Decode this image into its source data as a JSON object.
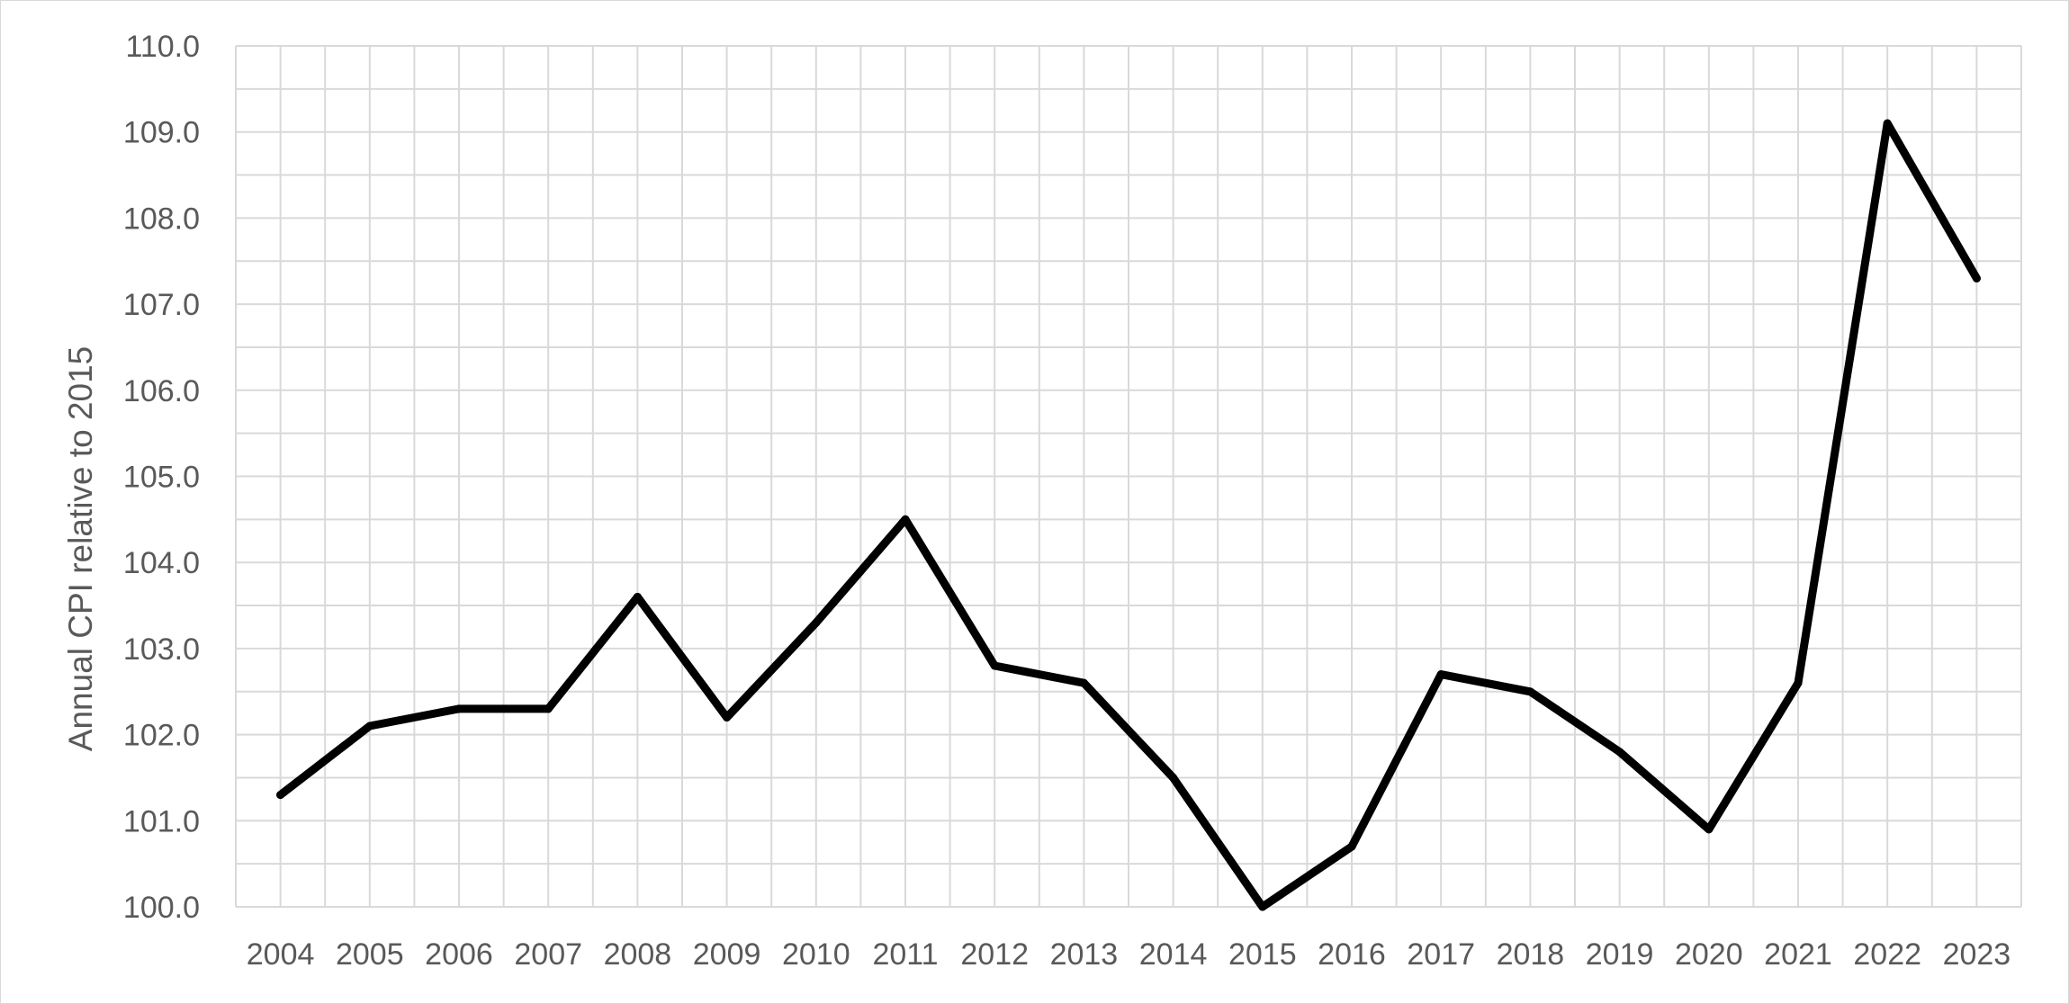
{
  "chart_data": {
    "type": "line",
    "title": "",
    "xlabel": "",
    "ylabel": "Annual CPI relative to 2015",
    "x": [
      "2004",
      "2005",
      "2006",
      "2007",
      "2008",
      "2009",
      "2010",
      "2011",
      "2012",
      "2013",
      "2014",
      "2015",
      "2016",
      "2017",
      "2018",
      "2019",
      "2020",
      "2021",
      "2022",
      "2023"
    ],
    "series": [
      {
        "values": [
          101.3,
          102.1,
          102.3,
          102.3,
          103.6,
          102.2,
          103.3,
          104.5,
          102.8,
          102.6,
          101.5,
          100.0,
          100.7,
          102.7,
          102.5,
          101.8,
          100.9,
          102.6,
          109.1,
          107.3
        ],
        "color": "#000000"
      }
    ],
    "ylim": [
      100.0,
      110.0
    ],
    "yticks": [
      "100.0",
      "101.0",
      "102.0",
      "103.0",
      "104.0",
      "105.0",
      "106.0",
      "107.0",
      "108.0",
      "109.0",
      "110.0"
    ],
    "grid": true,
    "legend": "none",
    "colors": {
      "grid": "#d9d9d9",
      "text": "#595959",
      "line": "#000000"
    }
  }
}
